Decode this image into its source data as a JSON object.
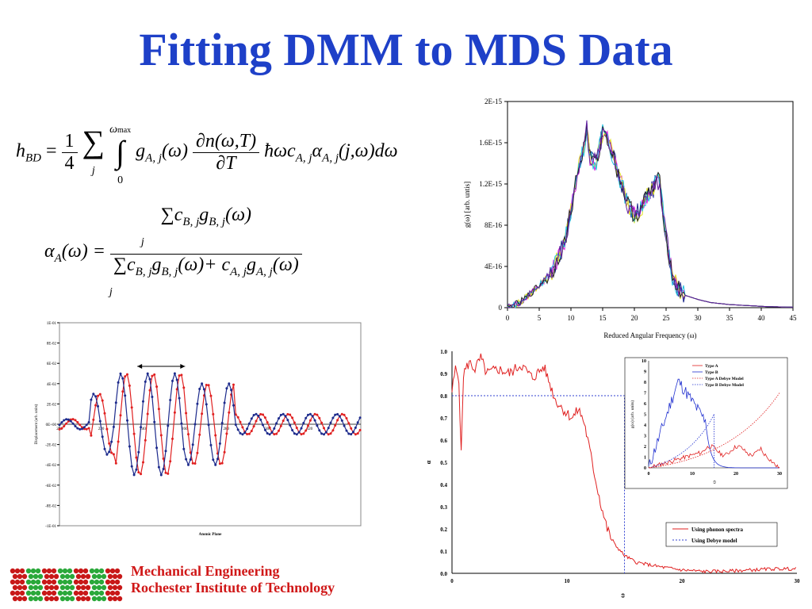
{
  "title": "Fitting DMM to MDS Data",
  "equation1": {
    "lhs": "h",
    "lhs_sub": "BD",
    "eq": "=",
    "frac_num": "1",
    "frac_den": "4",
    "sum": "∑",
    "sum_sub": "j",
    "int": "∫",
    "int_upper": "ω",
    "int_upper_sub": "max",
    "int_lower": "0",
    "g": "g",
    "g_sub": "A, j",
    "g_arg": "(ω)",
    "d_num": "∂n(ω,T)",
    "d_den": "∂T",
    "tail": "ħωc",
    "tail_sub": "A, j",
    "alpha": "α",
    "alpha_sub": "A, j",
    "alpha_arg": "(j,ω)dω"
  },
  "equation2": {
    "lhs": "α",
    "lhs_sub": "A",
    "lhs_arg": "(ω) =",
    "num": "∑c",
    "num_sub1": "B, j",
    "num_g": "g",
    "num_sub2": "B, j",
    "num_arg": "(ω)",
    "num_j": "j",
    "den": "∑c",
    "den_sub1": "B, j",
    "den_g": "g",
    "den_sub2": "B, j",
    "den_mid": "(ω)+ c",
    "den_sub3": "A, j",
    "den_g2": "g",
    "den_sub4": "A, j",
    "den_arg": "(ω)",
    "den_j": "j"
  },
  "footer": {
    "line1": "Mechanical Engineering",
    "line2": "Rochester Institute of Technology"
  },
  "colors": {
    "title": "#1e40c8",
    "footer": "#d01818",
    "red": "#e02020",
    "blue": "#1c2a8c"
  },
  "chart_data": [
    {
      "id": "dos",
      "type": "line",
      "xlabel": "Reduced Angular Frequency (ω)",
      "ylabel": "g(ω) [arb. untis]",
      "xlim": [
        0,
        45
      ],
      "ylim": [
        0,
        2e-15
      ],
      "xticks": [
        "0",
        "5",
        "10",
        "15",
        "20",
        "25",
        "30",
        "35",
        "40",
        "45"
      ],
      "yticks": [
        "0",
        "4E-16",
        "8E-16",
        "1.2E-15",
        "1.6E-15",
        "2E-15"
      ],
      "series_colors": [
        "#1c2a8c",
        "#e020e0",
        "#e0e020",
        "#20c0e0",
        "#202020",
        "#6020a0"
      ],
      "x": [
        0,
        1,
        2,
        3,
        4,
        5,
        6,
        7,
        8,
        9,
        10,
        11,
        12,
        12.5,
        13,
        14,
        15,
        15.5,
        16,
        17,
        18,
        19,
        20,
        21,
        22,
        23,
        23.5,
        24,
        25,
        26,
        27,
        28,
        30,
        32,
        35,
        38,
        41,
        45
      ],
      "y": [
        0,
        2e-17,
        5e-17,
        1e-16,
        1.6e-16,
        2.2e-16,
        2.8e-16,
        3.4e-16,
        5e-16,
        6.2e-16,
        9.5e-16,
        1.3e-15,
        1.55e-15,
        1.75e-15,
        1.45e-15,
        1.4e-15,
        1.7e-15,
        1.72e-15,
        1.6e-15,
        1.4e-15,
        1.2e-15,
        1e-15,
        9e-16,
        9.5e-16,
        1.1e-15,
        1.15e-15,
        1.25e-15,
        1.2e-15,
        7e-16,
        3e-16,
        1.8e-16,
        1.2e-16,
        8e-17,
        5e-17,
        3e-17,
        2e-17,
        1e-17,
        5e-18
      ]
    },
    {
      "id": "displacement",
      "type": "line",
      "xlabel": "Atomic Plane",
      "ylabel": "Displacement (arb. units)",
      "xlim": [
        200,
        440
      ],
      "ylim": [
        -0.1,
        0.1
      ],
      "xticks": [
        "200",
        "220",
        "240",
        "260",
        "280",
        "300",
        "320"
      ],
      "yticks": [
        "1E-01",
        "8E-02",
        "6E-02",
        "4E-02",
        "2E-02",
        "0E+00",
        "-2E-02",
        "-4E-02",
        "-6E-02",
        "-8E-02",
        "-1E-01"
      ],
      "series": [
        {
          "color": "#e02020",
          "amplitude": [
            0.004,
            0.028,
            0.05,
            0.05,
            0.028,
            0.004
          ],
          "centers": [
            210,
            240,
            262,
            285,
            307,
            330
          ]
        },
        {
          "color": "#1c2a8c",
          "amplitude": [
            0.006,
            0.032,
            0.054,
            0.048,
            0.028
          ],
          "centers": [
            225,
            268,
            305,
            327,
            352
          ]
        }
      ]
    },
    {
      "id": "alpha",
      "type": "line",
      "xlabel": "ω",
      "ylabel": "α",
      "xlim": [
        0,
        30
      ],
      "ylim": [
        0,
        1
      ],
      "xticks": [
        "0",
        "10",
        "20",
        "30"
      ],
      "yticks": [
        "0.0",
        "0.1",
        "0.2",
        "0.3",
        "0.4",
        "0.5",
        "0.6",
        "0.7",
        "0.8",
        "0.9",
        "1.0"
      ],
      "legend": [
        "Using phonon spectra",
        "Using Debye model"
      ],
      "x": [
        0,
        0.3,
        0.6,
        0.8,
        1,
        1.5,
        2,
        2.5,
        3,
        4,
        5,
        6,
        7,
        8,
        9,
        10,
        10.5,
        11,
        11.5,
        12,
        12.5,
        13,
        13.5,
        14,
        15,
        16,
        17,
        18,
        20,
        22,
        24,
        26,
        28,
        30
      ],
      "y": [
        0.82,
        0.92,
        0.88,
        0.53,
        0.9,
        0.95,
        0.92,
        0.97,
        0.9,
        0.92,
        0.9,
        0.94,
        0.88,
        0.93,
        0.78,
        0.72,
        0.7,
        0.74,
        0.68,
        0.55,
        0.42,
        0.3,
        0.2,
        0.14,
        0.08,
        0.05,
        0.04,
        0.03,
        0.015,
        0.008,
        0.01,
        0.015,
        0.02,
        0.02
      ],
      "debye": {
        "level": 0.8,
        "cutoff": 15
      }
    },
    {
      "id": "inset",
      "type": "line",
      "xlabel": "ω",
      "ylabel": "g(ω) (arb. units)",
      "xlim": [
        0,
        30
      ],
      "ylim": [
        0,
        10
      ],
      "xticks": [
        "0",
        "10",
        "20",
        "30"
      ],
      "yticks": [
        "0",
        "1",
        "2",
        "3",
        "4",
        "5",
        "6",
        "7",
        "8",
        "9",
        "10"
      ],
      "legend": [
        "Type A",
        "Type B",
        "Type A Debye Model",
        "Type B Debye Model"
      ]
    }
  ]
}
